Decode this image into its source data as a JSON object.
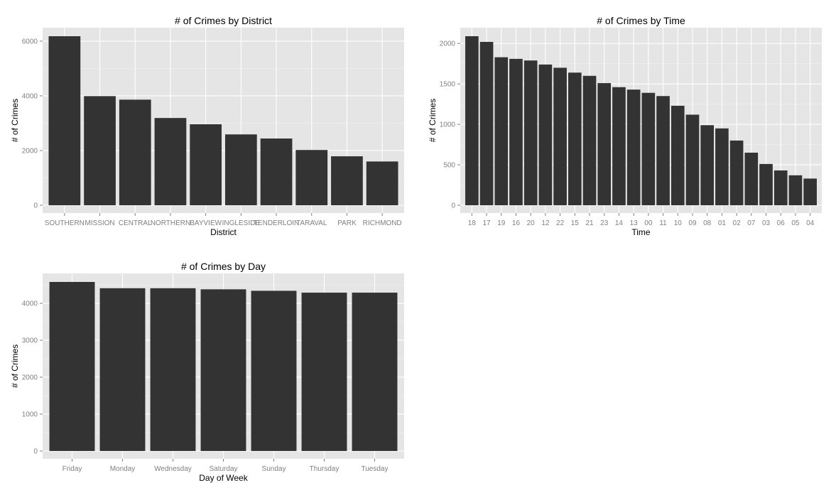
{
  "chart_data": [
    {
      "type": "bar",
      "title": "# of Crimes by District",
      "xlabel": "District",
      "ylabel": "# of Crimes",
      "categories": [
        "SOUTHERN",
        "MISSION",
        "CENTRAL",
        "NORTHERN",
        "BAYVIEW",
        "INGLESIDE",
        "TENDERLOIN",
        "TARAVAL",
        "PARK",
        "RICHMOND"
      ],
      "values": [
        6180,
        3990,
        3860,
        3190,
        2960,
        2590,
        2440,
        2020,
        1790,
        1600
      ],
      "ylim": [
        0,
        6180
      ],
      "yticks": [
        0,
        2000,
        4000,
        6000
      ],
      "grid": true
    },
    {
      "type": "bar",
      "title": "# of Crimes by Time",
      "xlabel": "Time",
      "ylabel": "# of Crimes",
      "categories": [
        "18",
        "17",
        "19",
        "16",
        "20",
        "12",
        "22",
        "15",
        "21",
        "23",
        "14",
        "13",
        "00",
        "11",
        "10",
        "09",
        "08",
        "01",
        "02",
        "07",
        "03",
        "06",
        "05",
        "04"
      ],
      "values": [
        2090,
        2020,
        1830,
        1810,
        1790,
        1740,
        1700,
        1640,
        1600,
        1510,
        1460,
        1430,
        1390,
        1350,
        1230,
        1120,
        990,
        950,
        800,
        650,
        510,
        430,
        370,
        330
      ],
      "ylim": [
        0,
        2090
      ],
      "yticks": [
        0,
        500,
        1000,
        1500,
        2000
      ],
      "grid": true
    },
    {
      "type": "bar",
      "title": "# of Crimes by Day",
      "xlabel": "Day of Week",
      "ylabel": "# of Crimes",
      "categories": [
        "Friday",
        "Monday",
        "Wednesday",
        "Saturday",
        "Sunday",
        "Thursday",
        "Tuesday"
      ],
      "values": [
        4580,
        4410,
        4410,
        4380,
        4340,
        4290,
        4290
      ],
      "ylim": [
        0,
        4580
      ],
      "yticks": [
        0,
        1000,
        2000,
        3000,
        4000
      ],
      "grid": true
    }
  ]
}
